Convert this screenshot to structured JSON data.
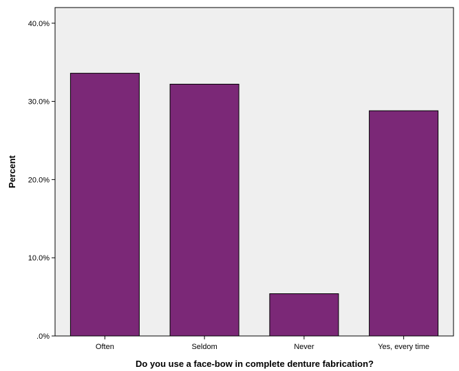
{
  "chart_data": {
    "type": "bar",
    "title": "",
    "xlabel": "Do you use a face-bow in complete denture fabrication?",
    "ylabel": "Percent",
    "categories": [
      "Often",
      "Seldom",
      "Never",
      "Yes, every time"
    ],
    "values": [
      33.6,
      32.2,
      5.4,
      28.8
    ],
    "ylim": [
      0,
      42
    ],
    "yticks": [
      0,
      10,
      20,
      30,
      40
    ],
    "ytick_labels": [
      ".0%",
      "10.0%",
      "20.0%",
      "30.0%",
      "40.0%"
    ],
    "bar_color": "#7b2877",
    "plot_background": "#efefef",
    "grid": false,
    "legend": "none"
  }
}
